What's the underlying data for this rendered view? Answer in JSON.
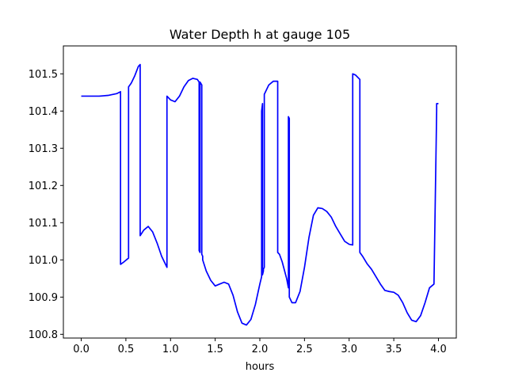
{
  "chart_data": {
    "type": "line",
    "title": "Water Depth h at gauge 105",
    "xlabel": "hours",
    "ylabel": "",
    "xlim": [
      -0.2,
      4.2
    ],
    "ylim": [
      100.79,
      101.575
    ],
    "xticks": [
      0.0,
      0.5,
      1.0,
      1.5,
      2.0,
      2.5,
      3.0,
      3.5,
      4.0
    ],
    "xtick_labels": [
      "0.0",
      "0.5",
      "1.0",
      "1.5",
      "2.0",
      "2.5",
      "3.0",
      "3.5",
      "4.0"
    ],
    "yticks": [
      100.8,
      100.9,
      101.0,
      101.1,
      101.2,
      101.3,
      101.4,
      101.5
    ],
    "ytick_labels": [
      "100.8",
      "100.9",
      "101.0",
      "101.1",
      "101.2",
      "101.3",
      "101.4",
      "101.5"
    ],
    "grid": false,
    "legend": "none",
    "series": [
      {
        "color": "#0000ff",
        "x": [
          0.0,
          0.1,
          0.2,
          0.3,
          0.4,
          0.44,
          0.44,
          0.48,
          0.53,
          0.53,
          0.56,
          0.6,
          0.64,
          0.66,
          0.66,
          0.7,
          0.75,
          0.8,
          0.85,
          0.9,
          0.95,
          0.96,
          0.96,
          1.0,
          1.05,
          1.1,
          1.15,
          1.2,
          1.25,
          1.3,
          1.32,
          1.32,
          1.33,
          1.33,
          1.35,
          1.35,
          1.36,
          1.36,
          1.4,
          1.45,
          1.5,
          1.55,
          1.6,
          1.65,
          1.7,
          1.75,
          1.8,
          1.85,
          1.9,
          1.95,
          2.0,
          2.02,
          2.02,
          2.03,
          2.03,
          2.04,
          2.04,
          2.05,
          2.05,
          2.1,
          2.15,
          2.2,
          2.2,
          2.22,
          2.25,
          2.3,
          2.32,
          2.32,
          2.33,
          2.33,
          2.36,
          2.4,
          2.45,
          2.5,
          2.55,
          2.6,
          2.65,
          2.7,
          2.75,
          2.8,
          2.85,
          2.9,
          2.95,
          3.0,
          3.04,
          3.04,
          3.07,
          3.12,
          3.12,
          3.15,
          3.2,
          3.25,
          3.3,
          3.35,
          3.4,
          3.45,
          3.5,
          3.55,
          3.6,
          3.65,
          3.7,
          3.75,
          3.8,
          3.85,
          3.9,
          3.95,
          3.98,
          3.98,
          4.0
        ],
        "y": [
          101.44,
          101.44,
          101.44,
          101.442,
          101.447,
          101.452,
          100.988,
          100.995,
          101.005,
          101.465,
          101.475,
          101.495,
          101.52,
          101.525,
          101.065,
          101.08,
          101.09,
          101.075,
          101.045,
          101.01,
          100.985,
          100.98,
          101.44,
          101.43,
          101.425,
          101.44,
          101.465,
          101.482,
          101.488,
          101.485,
          101.478,
          101.025,
          101.02,
          101.478,
          101.47,
          101.015,
          101.01,
          101.0,
          100.97,
          100.945,
          100.93,
          100.935,
          100.94,
          100.935,
          100.905,
          100.86,
          100.83,
          100.825,
          100.84,
          100.88,
          100.935,
          100.955,
          101.4,
          101.42,
          100.96,
          100.97,
          100.975,
          100.98,
          101.445,
          101.47,
          101.48,
          101.48,
          101.02,
          101.015,
          100.995,
          100.95,
          100.925,
          101.385,
          101.38,
          100.9,
          100.885,
          100.885,
          100.915,
          100.98,
          101.06,
          101.12,
          101.14,
          101.138,
          101.13,
          101.115,
          101.09,
          101.07,
          101.05,
          101.042,
          101.04,
          101.5,
          101.497,
          101.485,
          101.02,
          101.01,
          100.99,
          100.975,
          100.955,
          100.935,
          100.918,
          100.915,
          100.913,
          100.905,
          100.885,
          100.858,
          100.838,
          100.834,
          100.85,
          100.885,
          100.925,
          100.935,
          101.4,
          101.42,
          101.42
        ]
      }
    ]
  }
}
